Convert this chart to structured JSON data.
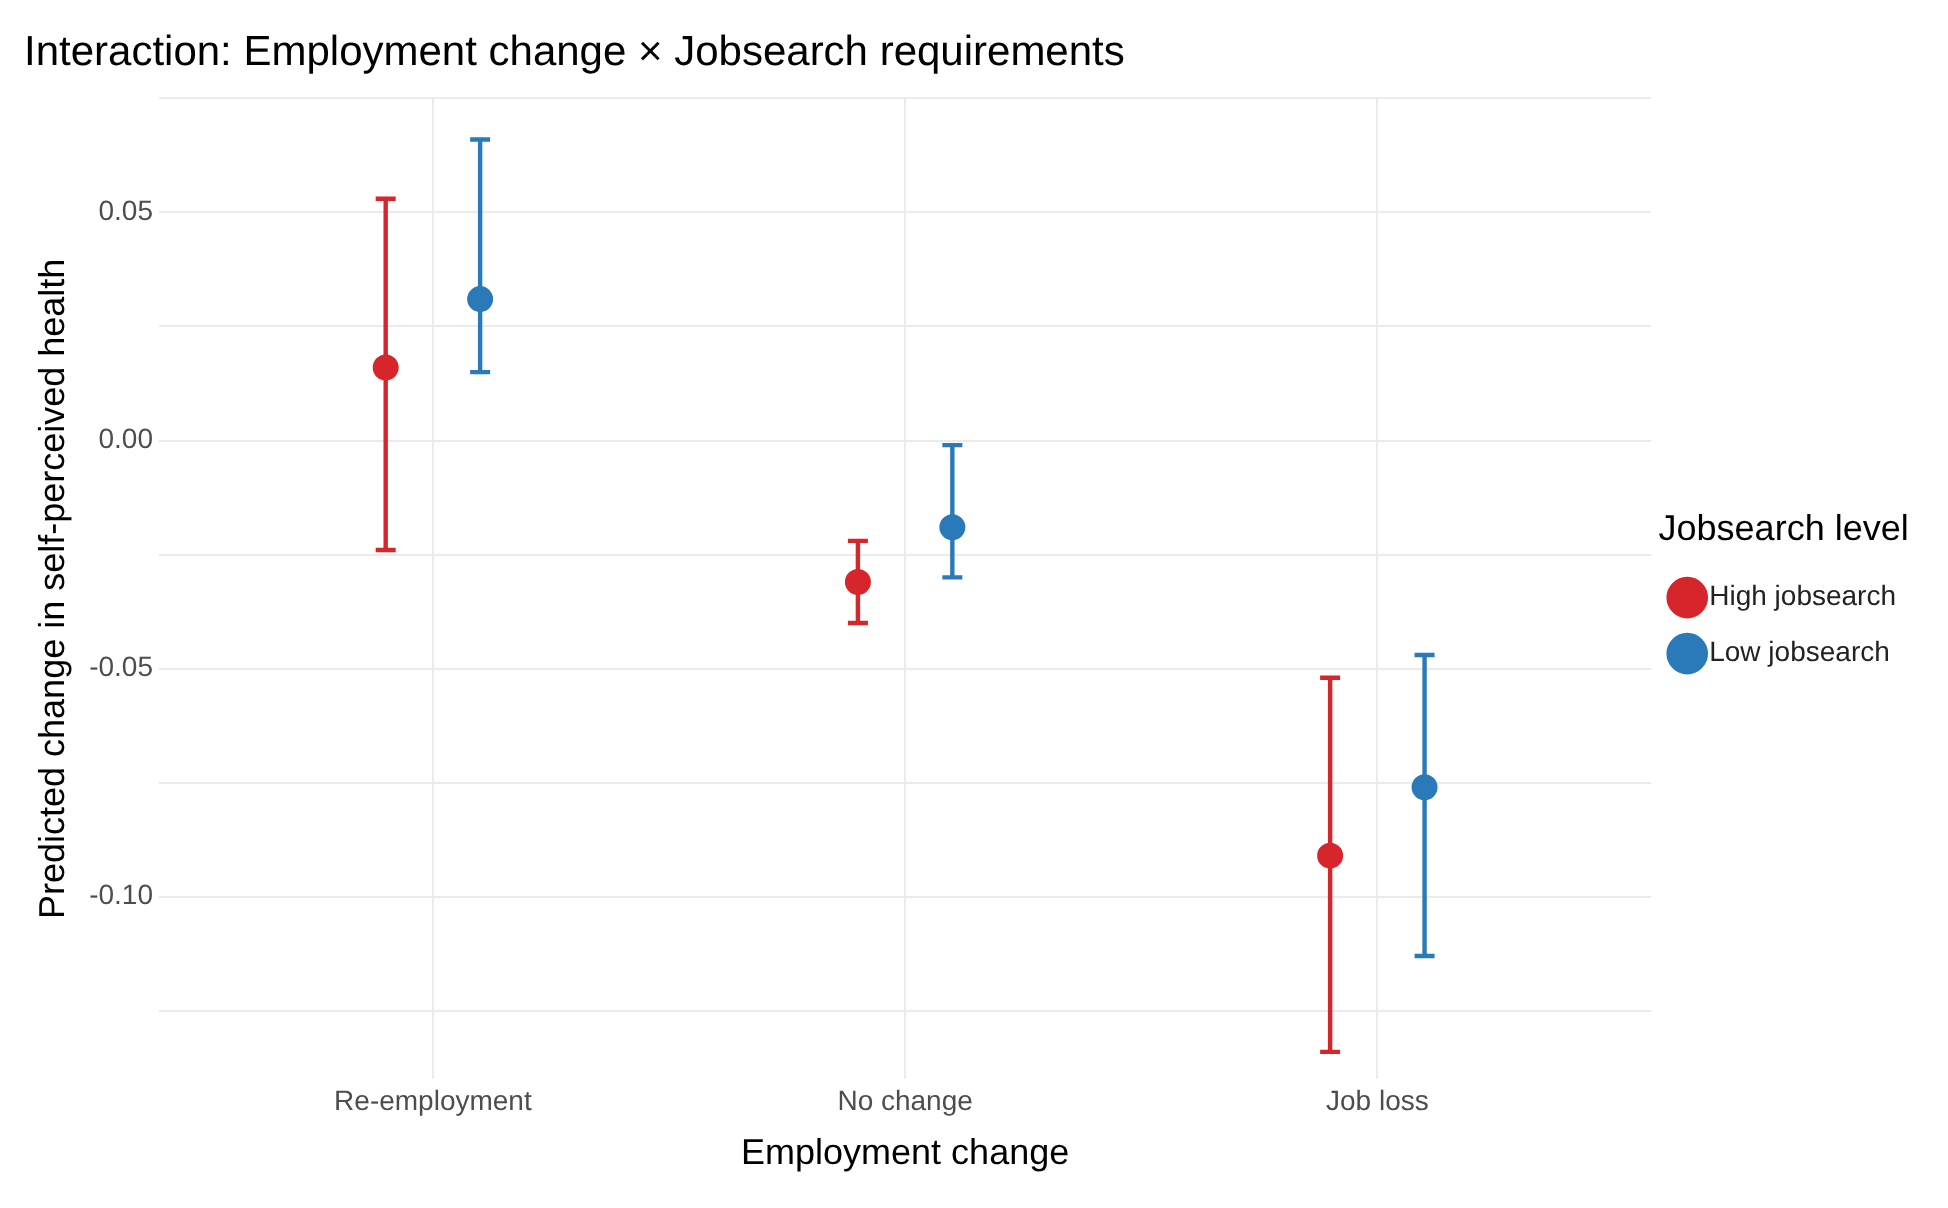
{
  "chart_data": {
    "type": "scatter",
    "title": "Interaction: Employment change × Jobsearch requirements",
    "xlabel": "Employment change",
    "ylabel": "Predicted change in self-perceived health",
    "legend_title": "Jobsearch level",
    "categories": [
      "Re-employment",
      "No change",
      "Job loss"
    ],
    "series": [
      {
        "name": "High jobsearch",
        "color": "#d7262b",
        "values": [
          0.016,
          -0.031,
          -0.091
        ],
        "errors": [
          [
            -0.024,
            0.053
          ],
          [
            -0.04,
            -0.022
          ],
          [
            -0.134,
            -0.052
          ]
        ]
      },
      {
        "name": "Low jobsearch",
        "color": "#2a7ab9",
        "values": [
          0.031,
          -0.019,
          -0.076
        ],
        "errors": [
          [
            0.015,
            0.066
          ],
          [
            -0.03,
            -0.001
          ],
          [
            -0.113,
            -0.047
          ]
        ]
      }
    ],
    "ylim": [
      -0.14,
      0.075
    ],
    "yticks": [
      {
        "value": -0.125,
        "label": null
      },
      {
        "value": -0.1,
        "label": "-0.10"
      },
      {
        "value": -0.075,
        "label": null
      },
      {
        "value": -0.05,
        "label": "-0.05"
      },
      {
        "value": -0.025,
        "label": null
      },
      {
        "value": 0,
        "label": "0.00"
      },
      {
        "value": 0.025,
        "label": null
      },
      {
        "value": 0.05,
        "label": "0.05"
      },
      {
        "value": 0.075,
        "label": null
      }
    ],
    "grid": true,
    "legend": "right",
    "marker": "circle"
  }
}
